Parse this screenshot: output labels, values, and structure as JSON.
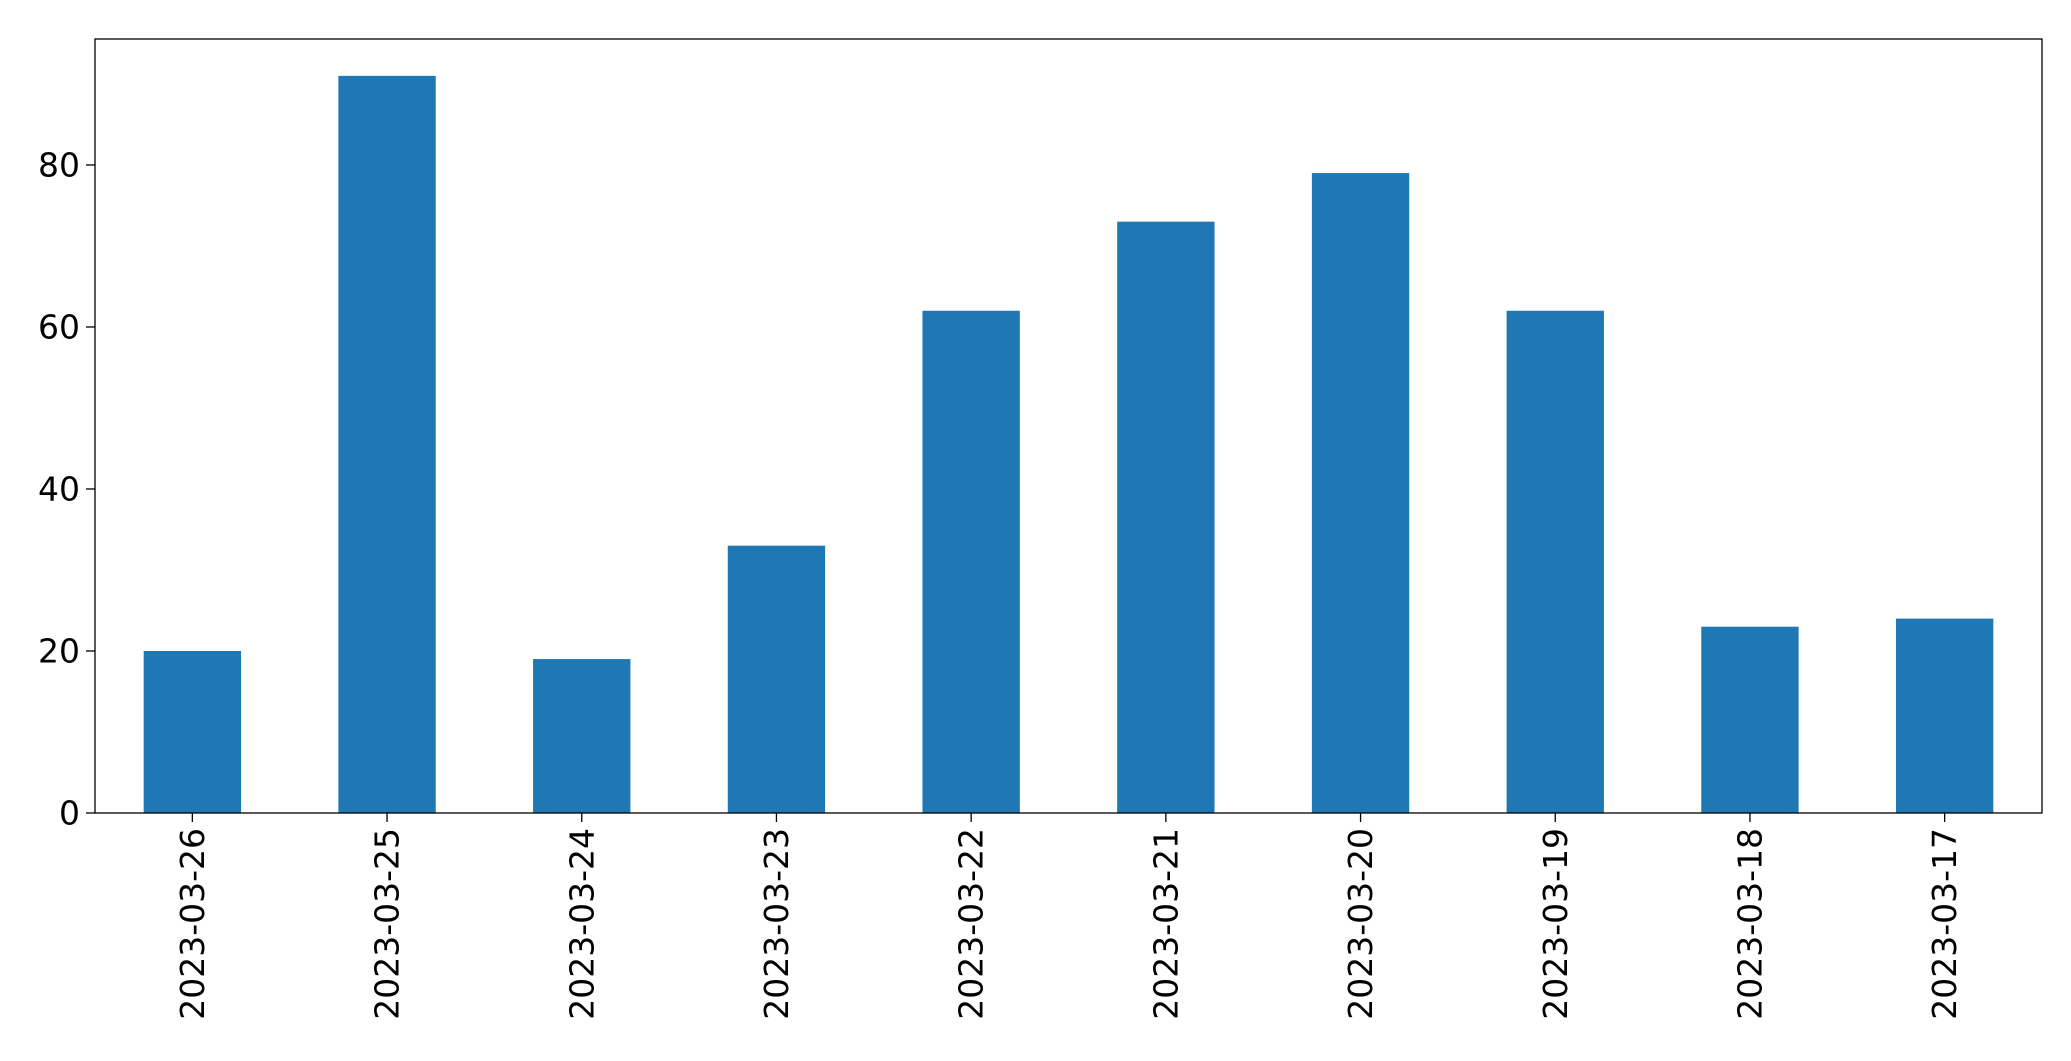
{
  "chart_data": {
    "type": "bar",
    "title": "",
    "xlabel": "",
    "ylabel": "",
    "categories": [
      "2023-03-26",
      "2023-03-25",
      "2023-03-24",
      "2023-03-23",
      "2023-03-22",
      "2023-03-21",
      "2023-03-20",
      "2023-03-19",
      "2023-03-18",
      "2023-03-17"
    ],
    "values": [
      20,
      91,
      19,
      33,
      62,
      73,
      79,
      62,
      23,
      24
    ],
    "ylim": [
      0,
      95.55
    ],
    "yticks": [
      0,
      20,
      40,
      60,
      80
    ],
    "grid": false,
    "legend": "none",
    "bar_color": "#1f77b4"
  }
}
